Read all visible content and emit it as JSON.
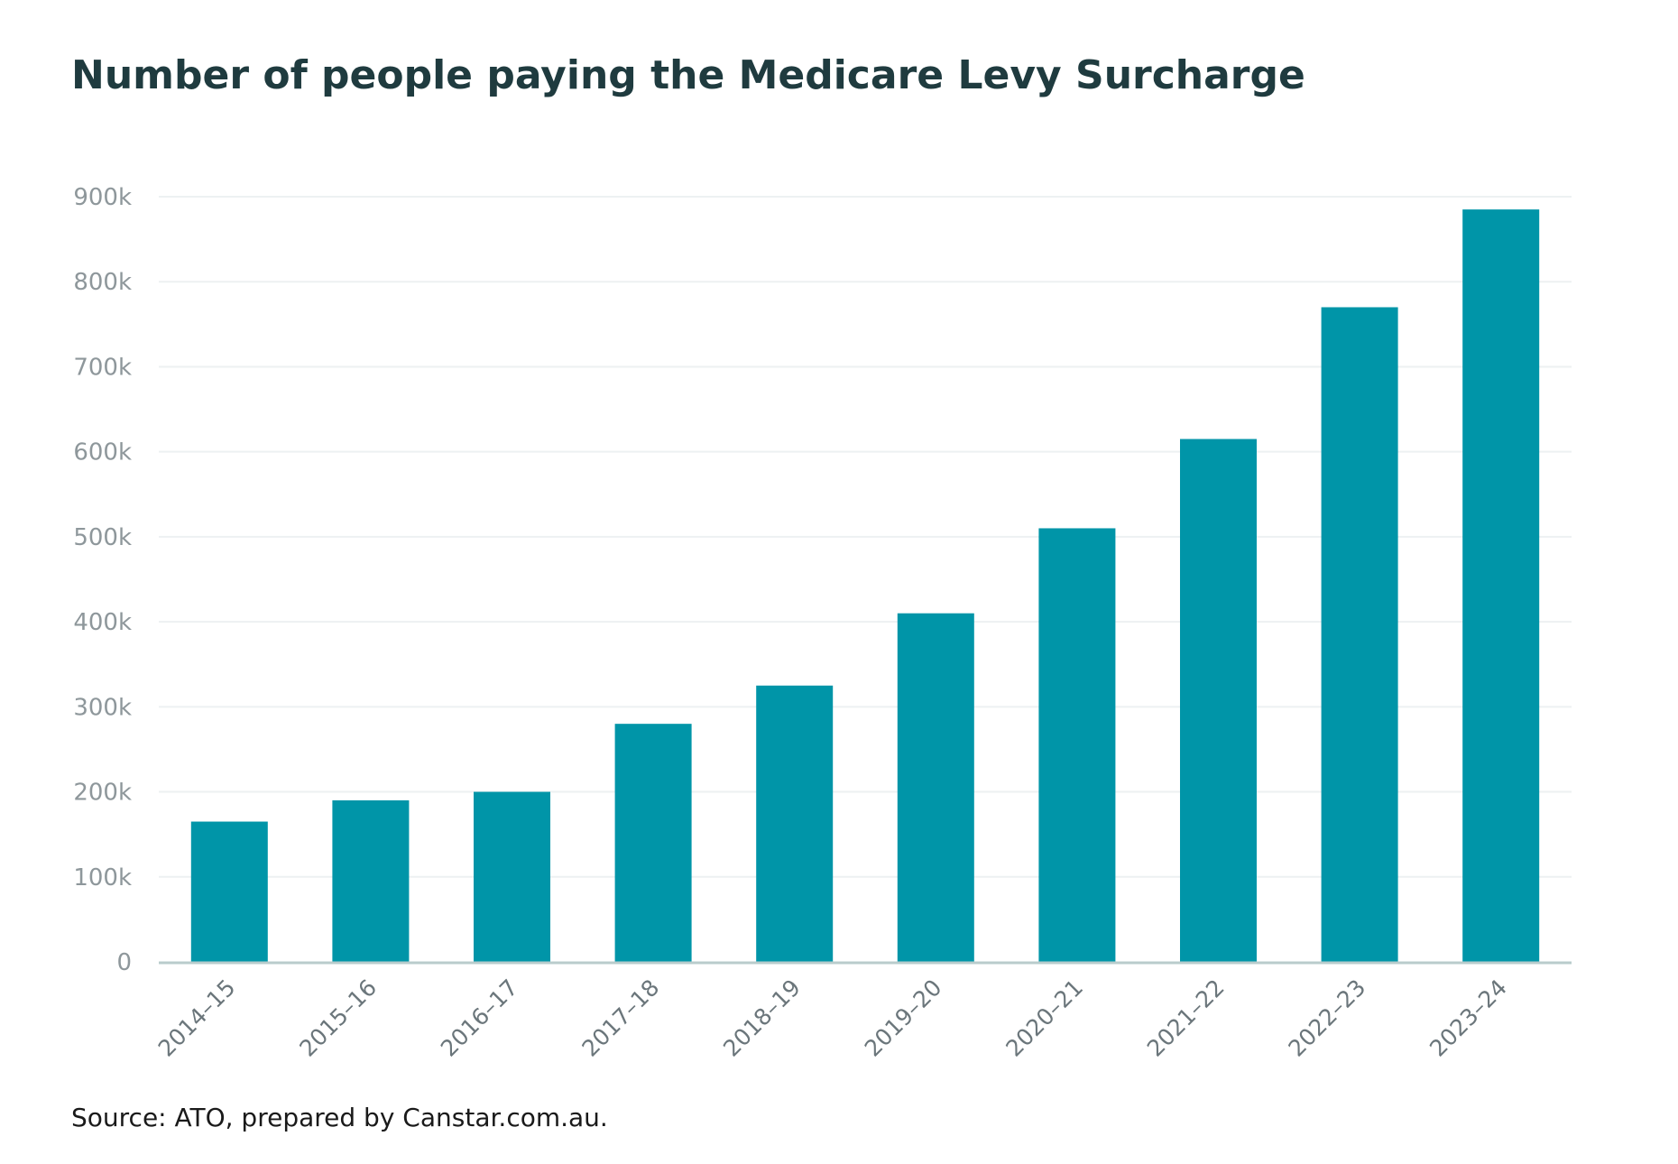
{
  "chart_data": {
    "type": "bar",
    "title": "Number of people paying the Medicare Levy Surcharge",
    "source": "Source: ATO, prepared by Canstar.com.au.",
    "categories": [
      "2014–15",
      "2015–16",
      "2016–17",
      "2017–18",
      "2018–19",
      "2019–20",
      "2020–21",
      "2021–22",
      "2022–23",
      "2023–24"
    ],
    "values": [
      165000,
      190000,
      200000,
      280000,
      325000,
      410000,
      510000,
      615000,
      770000,
      885000
    ],
    "ylim": [
      0,
      900000
    ],
    "yticks": [
      0,
      100000,
      200000,
      300000,
      400000,
      500000,
      600000,
      700000,
      800000,
      900000
    ],
    "ytick_labels": [
      "0",
      "100k",
      "200k",
      "300k",
      "400k",
      "500k",
      "600k",
      "700k",
      "800k",
      "900k"
    ],
    "xlabel": "",
    "ylabel": "",
    "grid": true,
    "colors": {
      "bar": "#0095a8",
      "grid": "#edf1f2",
      "baseline": "#b9cccc",
      "title": "#1f3b3f"
    }
  }
}
